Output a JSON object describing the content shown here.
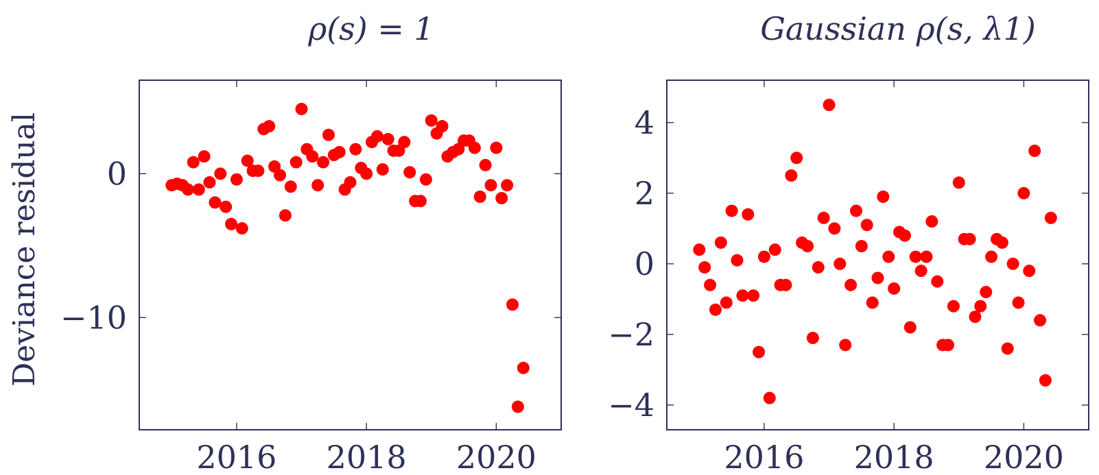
{
  "chart_data": [
    {
      "type": "scatter",
      "title": "ρ(s) = 1",
      "ylabel": "Deviance residual",
      "xlabel": "",
      "xlim": [
        2014.5,
        2021.0
      ],
      "ylim": [
        -17.8,
        6.5
      ],
      "xticks": [
        2016,
        2018,
        2020
      ],
      "xtick_labels": [
        "2016",
        "2018",
        "2020"
      ],
      "yticks": [
        -10,
        0
      ],
      "ytick_labels": [
        "−10",
        "0"
      ],
      "marker_color": "#ff0000",
      "series": [
        {
          "x": [
            2015.0,
            2015.083,
            2015.167,
            2015.25,
            2015.333,
            2015.417,
            2015.5,
            2015.583,
            2015.667,
            2015.75,
            2015.833,
            2015.917,
            2016.0,
            2016.083,
            2016.167,
            2016.25,
            2016.333,
            2016.417,
            2016.5,
            2016.583,
            2016.667,
            2016.75,
            2016.833,
            2016.917,
            2017.0,
            2017.083,
            2017.167,
            2017.25,
            2017.333,
            2017.417,
            2017.5,
            2017.583,
            2017.667,
            2017.75,
            2017.833,
            2017.917,
            2018.0,
            2018.083,
            2018.167,
            2018.25,
            2018.333,
            2018.417,
            2018.5,
            2018.583,
            2018.667,
            2018.75,
            2018.833,
            2018.917,
            2019.0,
            2019.083,
            2019.167,
            2019.25,
            2019.333,
            2019.417,
            2019.5,
            2019.583,
            2019.667,
            2019.75,
            2019.833,
            2019.917,
            2020.0,
            2020.083,
            2020.167,
            2020.25,
            2020.333,
            2020.417
          ],
          "y": [
            -0.8,
            -0.7,
            -0.8,
            -1.1,
            0.8,
            -1.1,
            1.2,
            -0.6,
            -2.0,
            0.0,
            -2.3,
            -3.5,
            -0.4,
            -3.8,
            0.9,
            0.2,
            0.2,
            3.1,
            3.3,
            0.5,
            -0.1,
            -2.9,
            -0.9,
            0.8,
            4.5,
            1.7,
            1.2,
            -0.8,
            0.8,
            2.7,
            1.3,
            1.5,
            -1.1,
            -0.6,
            1.7,
            0.4,
            0.0,
            2.2,
            2.6,
            0.3,
            2.4,
            1.6,
            1.6,
            2.2,
            0.1,
            -1.9,
            -1.9,
            -0.4,
            3.7,
            2.8,
            3.3,
            1.2,
            1.5,
            1.7,
            2.3,
            2.3,
            1.8,
            -1.6,
            0.6,
            -0.8,
            1.8,
            -1.7,
            -0.8,
            -9.1,
            -16.2,
            -13.5
          ]
        }
      ]
    },
    {
      "type": "scatter",
      "title": "Gaussian ρ(s, λ1)",
      "ylabel": "",
      "xlabel": "",
      "xlim": [
        2014.5,
        2021.0
      ],
      "ylim": [
        -4.7,
        5.2
      ],
      "xticks": [
        2016,
        2018,
        2020
      ],
      "xtick_labels": [
        "2016",
        "2018",
        "2020"
      ],
      "yticks": [
        -4,
        -2,
        0,
        2,
        4
      ],
      "ytick_labels": [
        "−4",
        "−2",
        "0",
        "2",
        "4"
      ],
      "marker_color": "#ff0000",
      "series": [
        {
          "x": [
            2015.0,
            2015.083,
            2015.167,
            2015.25,
            2015.333,
            2015.417,
            2015.5,
            2015.583,
            2015.667,
            2015.75,
            2015.833,
            2015.917,
            2016.0,
            2016.083,
            2016.167,
            2016.25,
            2016.333,
            2016.417,
            2016.5,
            2016.583,
            2016.667,
            2016.75,
            2016.833,
            2016.917,
            2017.0,
            2017.083,
            2017.167,
            2017.25,
            2017.333,
            2017.417,
            2017.5,
            2017.583,
            2017.667,
            2017.75,
            2017.833,
            2017.917,
            2018.0,
            2018.083,
            2018.167,
            2018.25,
            2018.333,
            2018.417,
            2018.5,
            2018.583,
            2018.667,
            2018.75,
            2018.833,
            2018.917,
            2019.0,
            2019.083,
            2019.167,
            2019.25,
            2019.333,
            2019.417,
            2019.5,
            2019.583,
            2019.667,
            2019.75,
            2019.833,
            2019.917,
            2020.0,
            2020.083,
            2020.167,
            2020.25,
            2020.333,
            2020.417
          ],
          "y": [
            0.4,
            -0.1,
            -0.6,
            -1.3,
            0.6,
            -1.1,
            1.5,
            0.1,
            -0.9,
            1.4,
            -0.9,
            -2.5,
            0.2,
            -3.8,
            0.4,
            -0.6,
            -0.6,
            2.5,
            3.0,
            0.6,
            0.5,
            -2.1,
            -0.1,
            1.3,
            4.5,
            1.0,
            0.0,
            -2.3,
            -0.6,
            1.5,
            0.5,
            1.1,
            -1.1,
            -0.4,
            1.9,
            0.2,
            -0.7,
            0.9,
            0.8,
            -1.8,
            0.2,
            -0.2,
            0.2,
            1.2,
            -0.5,
            -2.3,
            -2.3,
            -1.2,
            2.3,
            0.7,
            0.7,
            -1.5,
            -1.2,
            -0.8,
            0.2,
            0.7,
            0.6,
            -2.4,
            0.0,
            -1.1,
            2.0,
            -0.2,
            3.2,
            -1.6,
            -3.3,
            1.3
          ]
        }
      ]
    }
  ]
}
